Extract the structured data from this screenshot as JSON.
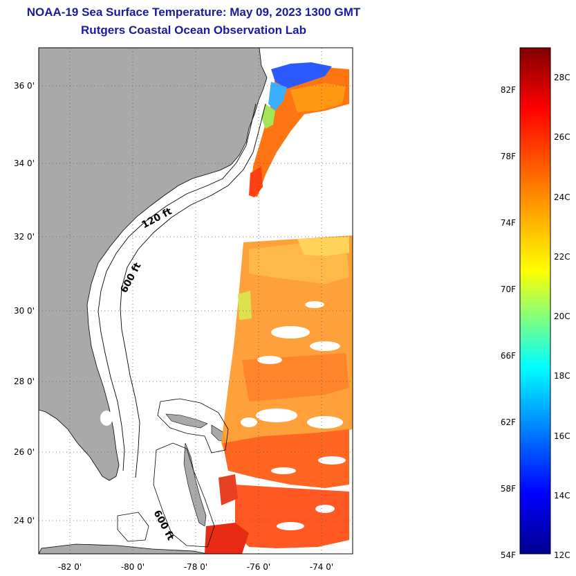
{
  "header": {
    "title": "NOAA-19 Sea Surface Temperature:  May 09, 2023 1300 GMT",
    "subtitle": "Rutgers Coastal Ocean Observation Lab"
  },
  "map": {
    "lat_labels": [
      "36 0'",
      "34 0'",
      "32 0'",
      "30 0'",
      "28 0'",
      "26 0'",
      "24 0'"
    ],
    "lon_labels": [
      "-82 0'",
      "-80 0'",
      "-78 0'",
      "-76 0'",
      "-74 0'"
    ],
    "contour_labels": [
      "120 ft",
      "600 ft",
      "600 ft"
    ],
    "land_color": "#a9a9a9",
    "background_color": "#ffffff"
  },
  "colorbar": {
    "fahrenheit_labels": [
      "82F",
      "78F",
      "74F",
      "70F",
      "66F",
      "62F",
      "58F",
      "54F"
    ],
    "celsius_labels": [
      "28C",
      "26C",
      "24C",
      "22C",
      "20C",
      "18C",
      "16C",
      "14C",
      "12C"
    ],
    "colors": [
      "#00008f",
      "#0000ff",
      "#00ffff",
      "#ffff00",
      "#ff8000",
      "#ff0000",
      "#800000"
    ]
  }
}
